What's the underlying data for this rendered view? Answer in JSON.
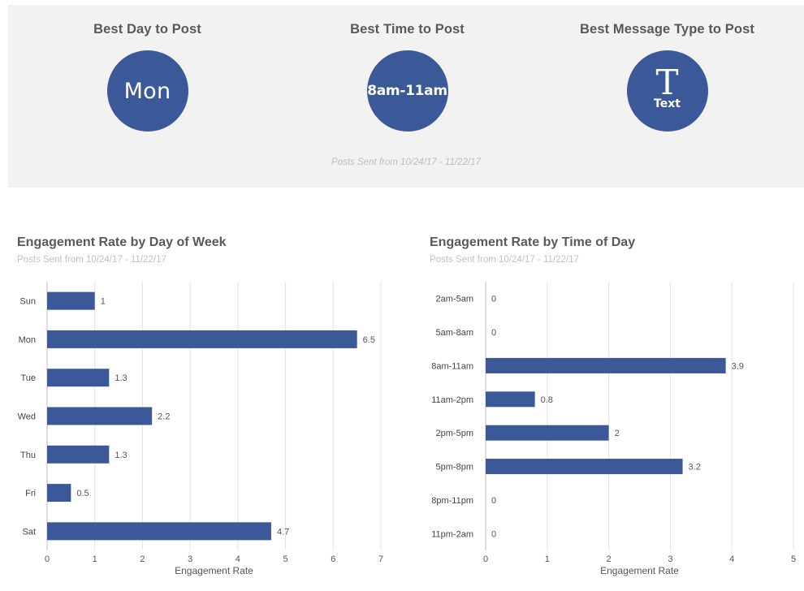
{
  "summary": {
    "cards": [
      {
        "title": "Best Day to Post",
        "value": "Mon"
      },
      {
        "title": "Best Time to Post",
        "value": "8am-11am"
      },
      {
        "title": "Best Message Type to Post",
        "glyph": "T",
        "value": "Text",
        "icon": "text-type-icon"
      }
    ],
    "note": "Posts Sent from 10/24/17 - 11/22/17",
    "circle_color": "#3b5998"
  },
  "chart_data": [
    {
      "type": "bar",
      "orientation": "horizontal",
      "title": "Engagement Rate by Day of Week",
      "subtitle": "Posts Sent from 10/24/17 - 11/22/17",
      "xlabel": "Engagement Rate",
      "ylabel": "",
      "categories": [
        "Sun",
        "Mon",
        "Tue",
        "Wed",
        "Thu",
        "Fri",
        "Sat"
      ],
      "values": [
        1,
        6.5,
        1.3,
        2.2,
        1.3,
        0.5,
        4.7
      ],
      "xlim": [
        0,
        7
      ],
      "ticks": [
        0,
        1,
        2,
        3,
        4,
        5,
        6,
        7
      ],
      "grid": true,
      "bar_color": "#3b5998"
    },
    {
      "type": "bar",
      "orientation": "horizontal",
      "title": "Engagement Rate by Time of Day",
      "subtitle": "Posts Sent from 10/24/17 - 11/22/17",
      "xlabel": "Engagement Rate",
      "ylabel": "",
      "categories": [
        "2am-5am",
        "5am-8am",
        "8am-11am",
        "11am-2pm",
        "2pm-5pm",
        "5pm-8pm",
        "8pm-11pm",
        "11pm-2am"
      ],
      "values": [
        0,
        0,
        3.9,
        0.8,
        2,
        3.2,
        0,
        0
      ],
      "xlim": [
        0,
        5
      ],
      "ticks": [
        0,
        1,
        2,
        3,
        4,
        5
      ],
      "grid": true,
      "bar_color": "#3b5998"
    }
  ]
}
